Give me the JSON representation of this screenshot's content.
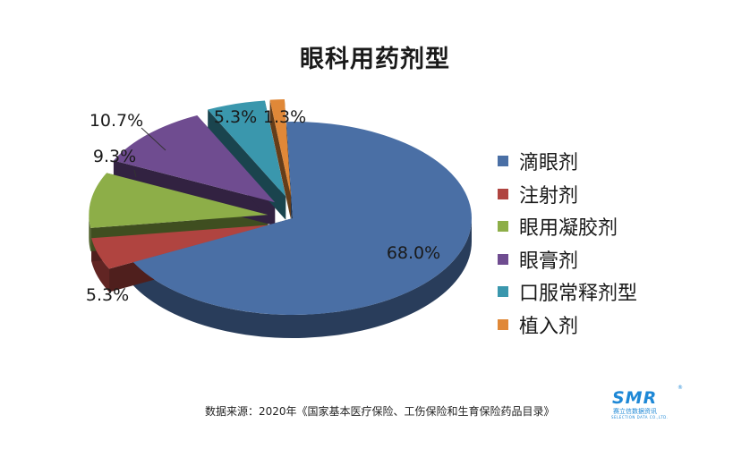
{
  "chart_data": {
    "type": "pie",
    "title": "眼科用药剂型",
    "categories": [
      "滴眼剂",
      "注射剂",
      "眼用凝胶剂",
      "眼膏剂",
      "口服常释剂型",
      "植入剂"
    ],
    "values": [
      68.0,
      5.3,
      9.3,
      10.7,
      5.3,
      1.3
    ],
    "value_labels": [
      "68.0%",
      "5.3%",
      "9.3%",
      "10.7%",
      "5.3%",
      "1.3%"
    ],
    "legend_position": "right",
    "style": "3d-exploded",
    "colors": [
      "#4a6fa5",
      "#b04440",
      "#8dae48",
      "#6f4c90",
      "#3a97ad",
      "#e08838"
    ]
  },
  "source": "数据来源：2020年《国家基本医疗保险、工伤保险和生育保险药品目录》",
  "logo": {
    "text": "SMR",
    "subtitle": "赛立信数据资讯",
    "tagline": "SELECTION DATA CO.,LTD.",
    "reg": "®"
  }
}
